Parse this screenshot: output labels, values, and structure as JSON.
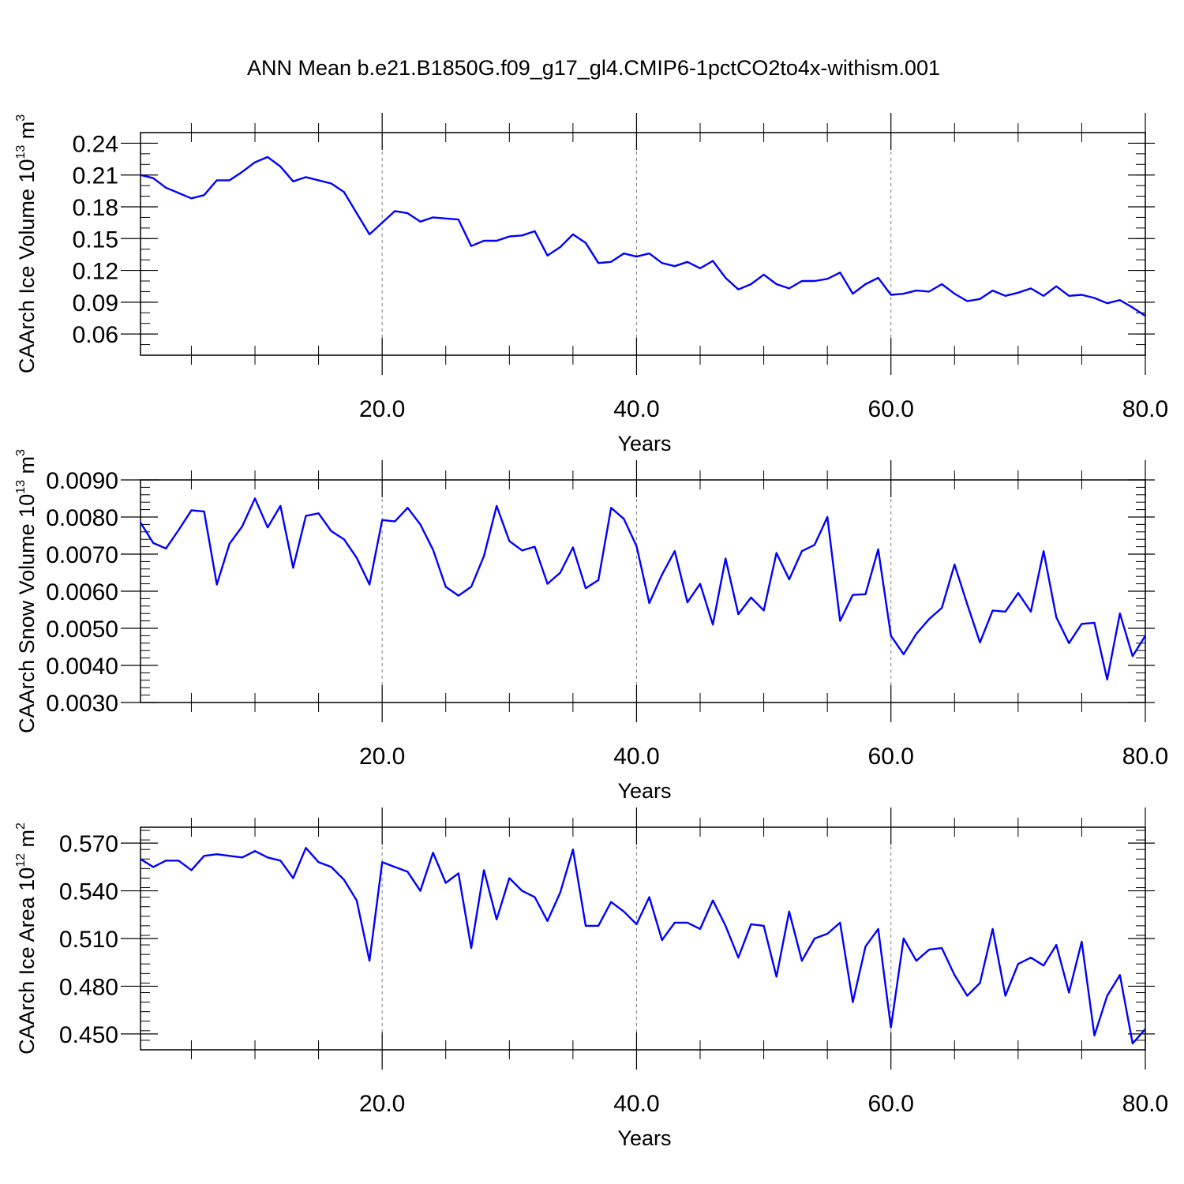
{
  "title": "ANN Mean b.e21.B1850G.f09_g17_gl4.CMIP6-1pctCO2to4x-withism.001",
  "colors": {
    "line": "#0000ff",
    "frame": "#000000",
    "grid": "#808080"
  },
  "chart_data": [
    {
      "type": "line",
      "ylabel": {
        "main": "CAArch Ice Volume 10",
        "exponent": "13",
        "unit": " m",
        "unit_exponent": "3"
      },
      "xlabel": "Years",
      "xlim": [
        1,
        80
      ],
      "ylim": [
        0.04,
        0.25
      ],
      "xticks": [
        20,
        40,
        60,
        80
      ],
      "xtick_labels": [
        "20.0",
        "40.0",
        "60.0",
        "80.0"
      ],
      "yticks": [
        0.06,
        0.09,
        0.12,
        0.15,
        0.18,
        0.21,
        0.24
      ],
      "ytick_labels": [
        "0.06",
        "0.09",
        "0.12",
        "0.15",
        "0.18",
        "0.21",
        "0.24"
      ],
      "ymin_tick_step": 0.01,
      "grid": "x-dashed",
      "x": [
        1,
        2,
        3,
        4,
        5,
        6,
        7,
        8,
        9,
        10,
        11,
        12,
        13,
        14,
        15,
        16,
        17,
        18,
        19,
        20,
        21,
        22,
        23,
        24,
        25,
        26,
        27,
        28,
        29,
        30,
        31,
        32,
        33,
        34,
        35,
        36,
        37,
        38,
        39,
        40,
        41,
        42,
        43,
        44,
        45,
        46,
        47,
        48,
        49,
        50,
        51,
        52,
        53,
        54,
        55,
        56,
        57,
        58,
        59,
        60,
        61,
        62,
        63,
        64,
        65,
        66,
        67,
        68,
        69,
        70,
        71,
        72,
        73,
        74,
        75,
        76,
        77,
        78,
        79,
        80
      ],
      "values": [
        0.21,
        0.207,
        0.198,
        0.193,
        0.188,
        0.191,
        0.205,
        0.205,
        0.213,
        0.222,
        0.227,
        0.218,
        0.204,
        0.208,
        0.205,
        0.202,
        0.194,
        0.174,
        0.154,
        0.165,
        0.176,
        0.174,
        0.166,
        0.17,
        0.169,
        0.168,
        0.143,
        0.148,
        0.148,
        0.152,
        0.153,
        0.157,
        0.134,
        0.142,
        0.154,
        0.146,
        0.127,
        0.128,
        0.136,
        0.133,
        0.136,
        0.127,
        0.124,
        0.128,
        0.122,
        0.129,
        0.113,
        0.102,
        0.107,
        0.116,
        0.107,
        0.103,
        0.11,
        0.11,
        0.112,
        0.118,
        0.098,
        0.107,
        0.113,
        0.097,
        0.098,
        0.101,
        0.1,
        0.107,
        0.098,
        0.091,
        0.093,
        0.101,
        0.096,
        0.099,
        0.103,
        0.096,
        0.105,
        0.096,
        0.097,
        0.094,
        0.089,
        0.092,
        0.085,
        0.077
      ]
    },
    {
      "type": "line",
      "ylabel": {
        "main": "CAArch Snow Volume 10",
        "exponent": "13",
        "unit": " m",
        "unit_exponent": "3"
      },
      "xlabel": "Years",
      "xlim": [
        1,
        80
      ],
      "ylim": [
        0.003,
        0.009
      ],
      "xticks": [
        20,
        40,
        60,
        80
      ],
      "xtick_labels": [
        "20.0",
        "40.0",
        "60.0",
        "80.0"
      ],
      "yticks": [
        0.003,
        0.004,
        0.005,
        0.006,
        0.007,
        0.008,
        0.009
      ],
      "ytick_labels": [
        "0.0030",
        "0.0040",
        "0.0050",
        "0.0060",
        "0.0070",
        "0.0080",
        "0.0090"
      ],
      "ymin_tick_step": 0.0002,
      "grid": "x-dashed",
      "x": [
        1,
        2,
        3,
        4,
        5,
        6,
        7,
        8,
        9,
        10,
        11,
        12,
        13,
        14,
        15,
        16,
        17,
        18,
        19,
        20,
        21,
        22,
        23,
        24,
        25,
        26,
        27,
        28,
        29,
        30,
        31,
        32,
        33,
        34,
        35,
        36,
        37,
        38,
        39,
        40,
        41,
        42,
        43,
        44,
        45,
        46,
        47,
        48,
        49,
        50,
        51,
        52,
        53,
        54,
        55,
        56,
        57,
        58,
        59,
        60,
        61,
        62,
        63,
        64,
        65,
        66,
        67,
        68,
        69,
        70,
        71,
        72,
        73,
        74,
        75,
        76,
        77,
        78,
        79,
        80
      ],
      "values": [
        0.00785,
        0.0073,
        0.00715,
        0.00765,
        0.00818,
        0.00815,
        0.00618,
        0.00728,
        0.00775,
        0.0085,
        0.00772,
        0.0083,
        0.00663,
        0.00803,
        0.0081,
        0.00762,
        0.0074,
        0.0069,
        0.00618,
        0.00792,
        0.00788,
        0.00825,
        0.0078,
        0.00712,
        0.00612,
        0.00588,
        0.00612,
        0.00695,
        0.0083,
        0.00735,
        0.0071,
        0.0072,
        0.0062,
        0.0065,
        0.00718,
        0.00608,
        0.0063,
        0.00825,
        0.00795,
        0.00722,
        0.00568,
        0.00645,
        0.00708,
        0.0057,
        0.0062,
        0.0051,
        0.00688,
        0.00538,
        0.00583,
        0.00548,
        0.00703,
        0.00632,
        0.00708,
        0.00725,
        0.008,
        0.0052,
        0.0059,
        0.00592,
        0.00713,
        0.0048,
        0.0043,
        0.00485,
        0.00525,
        0.00555,
        0.00672,
        0.00565,
        0.00462,
        0.00548,
        0.00545,
        0.00595,
        0.00545,
        0.00708,
        0.0053,
        0.0046,
        0.00512,
        0.00515,
        0.00362,
        0.0054,
        0.00425,
        0.0048
      ]
    },
    {
      "type": "line",
      "ylabel": {
        "main": "CAArch Ice Area 10",
        "exponent": "12",
        "unit": " m",
        "unit_exponent": "2"
      },
      "xlabel": "Years",
      "xlim": [
        1,
        80
      ],
      "ylim": [
        0.44,
        0.58
      ],
      "xticks": [
        20,
        40,
        60,
        80
      ],
      "xtick_labels": [
        "20.0",
        "40.0",
        "60.0",
        "80.0"
      ],
      "yticks": [
        0.45,
        0.48,
        0.51,
        0.54,
        0.57
      ],
      "ytick_labels": [
        "0.450",
        "0.480",
        "0.510",
        "0.540",
        "0.570"
      ],
      "ymin_tick_step": 0.006,
      "grid": "x-dashed",
      "x": [
        1,
        2,
        3,
        4,
        5,
        6,
        7,
        8,
        9,
        10,
        11,
        12,
        13,
        14,
        15,
        16,
        17,
        18,
        19,
        20,
        21,
        22,
        23,
        24,
        25,
        26,
        27,
        28,
        29,
        30,
        31,
        32,
        33,
        34,
        35,
        36,
        37,
        38,
        39,
        40,
        41,
        42,
        43,
        44,
        45,
        46,
        47,
        48,
        49,
        50,
        51,
        52,
        53,
        54,
        55,
        56,
        57,
        58,
        59,
        60,
        61,
        62,
        63,
        64,
        65,
        66,
        67,
        68,
        69,
        70,
        71,
        72,
        73,
        74,
        75,
        76,
        77,
        78,
        79,
        80
      ],
      "values": [
        0.56,
        0.555,
        0.559,
        0.559,
        0.553,
        0.562,
        0.563,
        0.562,
        0.561,
        0.565,
        0.561,
        0.559,
        0.548,
        0.567,
        0.558,
        0.555,
        0.547,
        0.534,
        0.496,
        0.558,
        0.555,
        0.552,
        0.54,
        0.564,
        0.545,
        0.551,
        0.504,
        0.553,
        0.522,
        0.548,
        0.54,
        0.536,
        0.521,
        0.539,
        0.566,
        0.518,
        0.518,
        0.533,
        0.527,
        0.519,
        0.536,
        0.509,
        0.52,
        0.52,
        0.516,
        0.534,
        0.518,
        0.498,
        0.519,
        0.518,
        0.486,
        0.527,
        0.496,
        0.51,
        0.513,
        0.52,
        0.47,
        0.505,
        0.516,
        0.454,
        0.51,
        0.496,
        0.503,
        0.504,
        0.487,
        0.474,
        0.482,
        0.516,
        0.474,
        0.494,
        0.498,
        0.493,
        0.506,
        0.476,
        0.508,
        0.449,
        0.474,
        0.487,
        0.444,
        0.453
      ]
    }
  ]
}
